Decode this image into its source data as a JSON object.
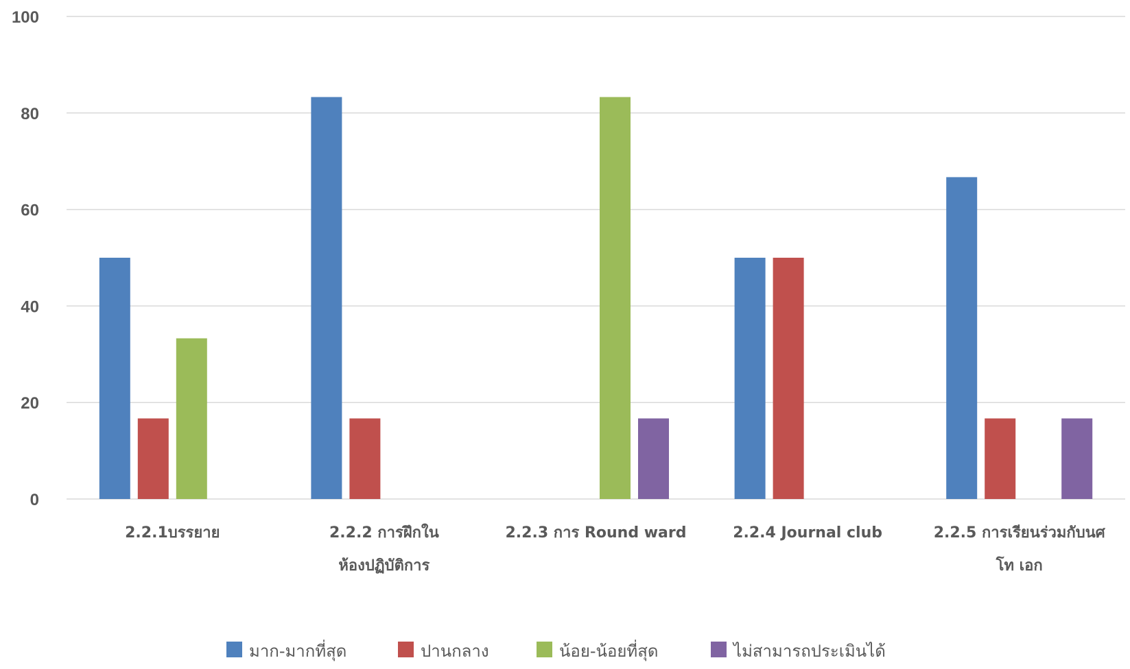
{
  "chart_data": {
    "type": "bar",
    "title": "",
    "xlabel": "",
    "ylabel": "",
    "ylim": [
      0,
      100
    ],
    "yticks": [
      "0",
      "20",
      "40",
      "60",
      "80",
      "100"
    ],
    "grid": "horizontal",
    "legend_position": "bottom",
    "categories": [
      [
        "2.2.1บรรยาย"
      ],
      [
        "2.2.2 การฝึกใน",
        "ห้องปฏิบัติการ"
      ],
      [
        "2.2.3 การ Round ward"
      ],
      [
        "2.2.4 Journal club"
      ],
      [
        "2.2.5 การเรียนร่วมกับนศ",
        "โท เอก"
      ]
    ],
    "series": [
      {
        "name": "มาก-มากที่สุด",
        "color": "#4F81BD",
        "values": [
          50,
          83.3,
          null,
          50,
          66.7
        ]
      },
      {
        "name": "ปานกลาง",
        "color": "#C0504D",
        "values": [
          16.7,
          16.7,
          null,
          50,
          16.7
        ]
      },
      {
        "name": "น้อย-น้อยที่สุด",
        "color": "#9BBB59",
        "values": [
          33.3,
          null,
          83.3,
          null,
          null
        ]
      },
      {
        "name": "ไม่สามารถประเมินได้",
        "color": "#8064A2",
        "values": [
          null,
          null,
          16.7,
          null,
          16.7
        ]
      }
    ],
    "gridline_color": "#D9D9D9",
    "axis_line_color": "#D9D9D9"
  }
}
